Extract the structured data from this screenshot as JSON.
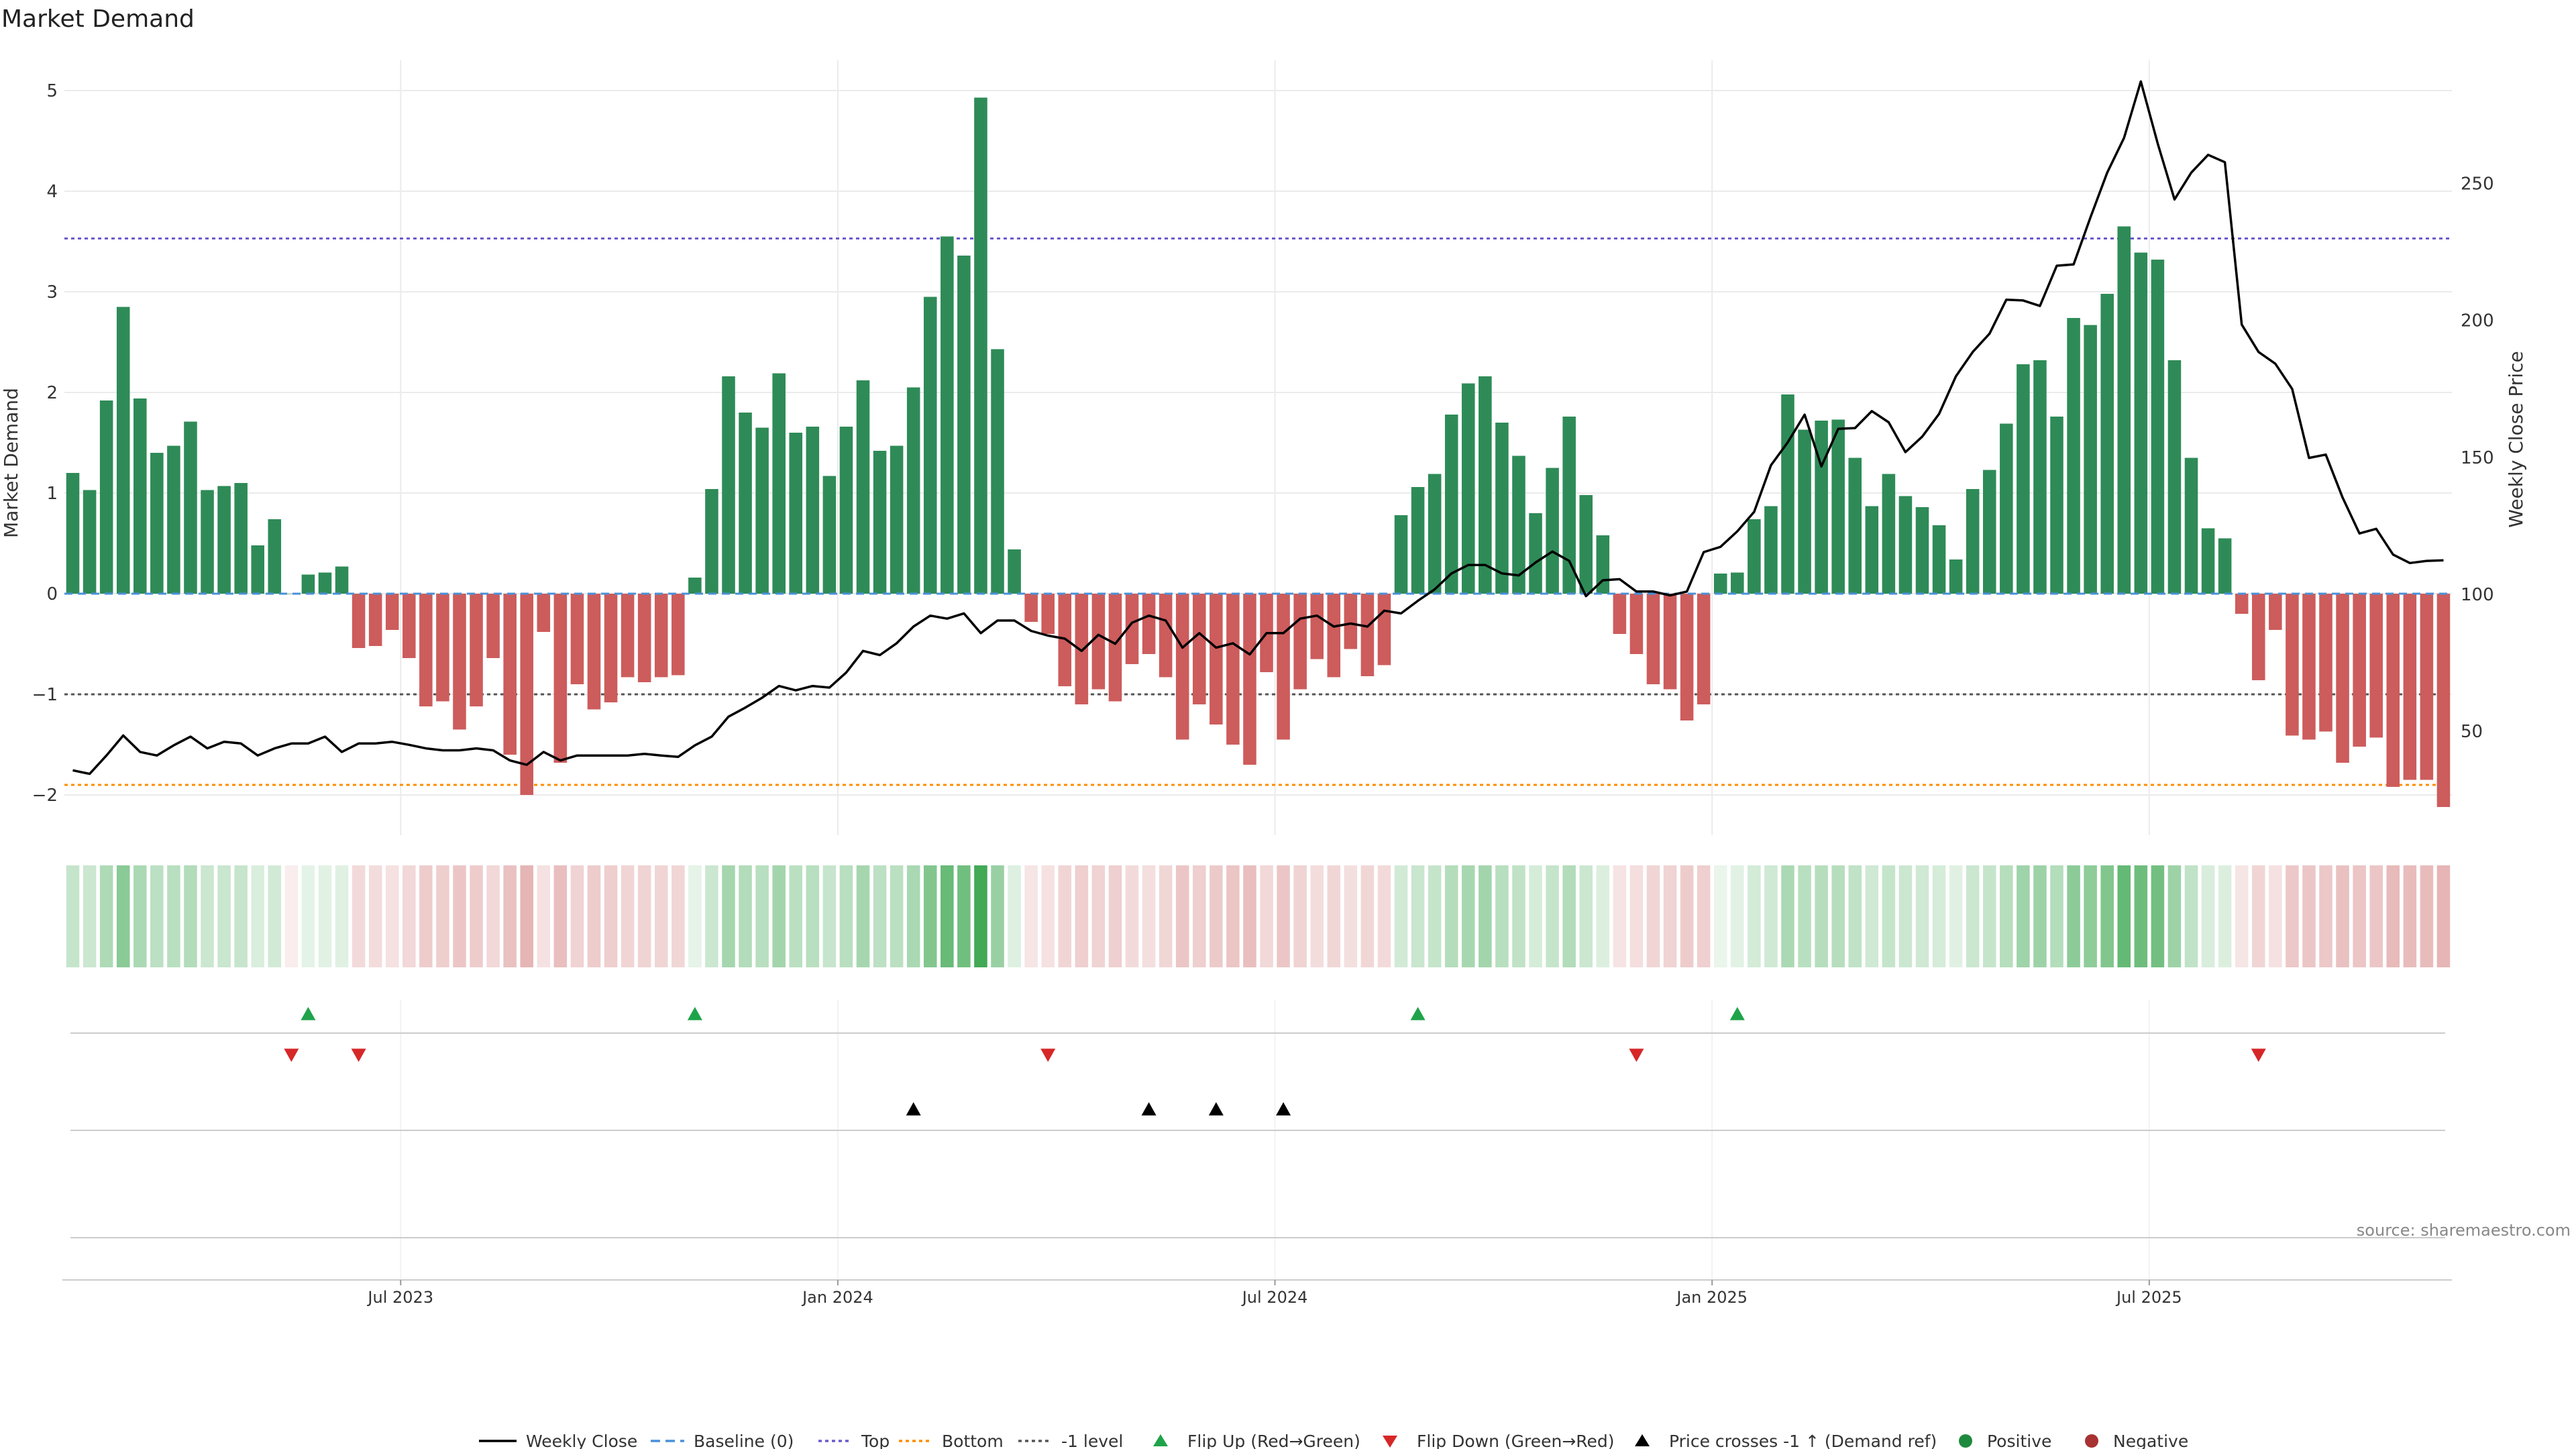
{
  "title": "Market Demand",
  "source": "source: sharemaestro.com",
  "colors": {
    "positive": "#2e8b57",
    "negative": "#cd5c5c",
    "price": "#000000",
    "top": "#6a5acd",
    "bottom": "#ff8c00",
    "minus1": "#555555",
    "flip_up": "#1fa34a",
    "flip_down": "#d62728",
    "grid": "#ebebeb"
  },
  "chart_data": {
    "type": "bar",
    "title": "Market Demand",
    "ylabel": "Market Demand",
    "y2label": "Weekly Close Price",
    "ylim": [
      -2.4,
      5.3
    ],
    "y2lim": [
      12,
      295
    ],
    "yticks": [
      5,
      4,
      3,
      2,
      1,
      0,
      -1,
      -2
    ],
    "y2ticks": [
      250,
      200,
      150,
      100,
      50
    ],
    "ref_lines": {
      "top": 3.53,
      "bottom": -1.9,
      "minus1": -1.0
    },
    "x_ticks": [
      "Jul 2023",
      "Jan 2024",
      "Jul 2024",
      "Jan 2025",
      "Jul 2025"
    ],
    "x_tick_weeks": [
      20,
      46,
      72,
      98,
      124
    ],
    "demand": [
      1.2,
      1.03,
      1.92,
      2.85,
      1.94,
      1.4,
      1.47,
      1.71,
      1.03,
      1.07,
      1.1,
      0.48,
      0.74,
      0.0,
      0.19,
      0.21,
      0.27,
      -0.54,
      -0.52,
      -0.36,
      -0.64,
      -1.12,
      -1.07,
      -1.35,
      -1.12,
      -0.64,
      -1.6,
      -2.0,
      -0.38,
      -1.68,
      -0.9,
      -1.15,
      -1.08,
      -0.83,
      -0.88,
      -0.83,
      -0.81,
      0.16,
      1.04,
      2.16,
      1.8,
      1.65,
      2.19,
      1.6,
      1.66,
      1.17,
      1.66,
      2.12,
      1.42,
      1.47,
      2.05,
      2.95,
      3.55,
      3.36,
      4.93,
      2.43,
      0.44,
      -0.28,
      -0.4,
      -0.92,
      -1.1,
      -0.95,
      -1.07,
      -0.7,
      -0.6,
      -0.83,
      -1.45,
      -1.1,
      -1.3,
      -1.5,
      -1.7,
      -0.78,
      -1.45,
      -0.95,
      -0.65,
      -0.83,
      -0.55,
      -0.82,
      -0.71,
      0.78,
      1.06,
      1.19,
      1.78,
      2.09,
      2.16,
      1.7,
      1.37,
      0.8,
      1.25,
      1.76,
      0.98,
      0.58,
      -0.4,
      -0.6,
      -0.9,
      -0.95,
      -1.26,
      -1.1,
      0.2,
      0.21,
      0.74,
      0.87,
      1.98,
      1.63,
      1.72,
      1.73,
      1.35,
      0.87,
      1.19,
      0.97,
      0.86,
      0.68,
      0.34,
      1.04,
      1.23,
      1.69,
      2.28,
      2.32,
      1.76,
      2.74,
      2.67,
      2.98,
      3.65,
      3.39,
      3.32,
      2.32,
      1.35,
      0.65,
      0.55,
      -0.2,
      -0.86,
      -0.36,
      -1.41,
      -1.45,
      -1.37,
      -1.68,
      -1.52,
      -1.43,
      -1.92,
      -1.85,
      -1.85,
      -2.12
    ],
    "price": [
      35.7,
      34.4,
      41.1,
      48.4,
      42.4,
      41.1,
      44.8,
      48.0,
      43.7,
      46.1,
      45.5,
      41.1,
      43.7,
      45.5,
      45.5,
      48.0,
      42.4,
      45.5,
      45.5,
      46.1,
      45.0,
      43.7,
      43.0,
      43.0,
      43.7,
      43.0,
      39.3,
      37.7,
      42.4,
      39.3,
      41.1,
      41.1,
      41.1,
      41.1,
      41.7,
      41.1,
      40.6,
      44.8,
      48.0,
      55.3,
      58.6,
      62.2,
      66.5,
      64.9,
      66.5,
      65.9,
      71.4,
      79.3,
      77.8,
      82.1,
      88.2,
      92.2,
      91.1,
      93.0,
      85.8,
      90.4,
      90.4,
      86.6,
      84.9,
      83.8,
      79.3,
      85.2,
      81.9,
      89.6,
      92.2,
      90.4,
      80.5,
      85.8,
      80.5,
      82.1,
      78.0,
      85.8,
      85.8,
      91.1,
      92.2,
      88.2,
      89.3,
      88.2,
      94.0,
      93.0,
      97.6,
      101.8,
      107.6,
      110.7,
      110.7,
      107.6,
      106.9,
      111.6,
      115.6,
      112.2,
      99.3,
      105.1,
      105.5,
      101.0,
      101.0,
      99.6,
      101.0,
      115.4,
      117.3,
      123.0,
      130.1,
      147.1,
      155.5,
      165.6,
      146.7,
      160.4,
      160.7,
      166.9,
      162.8,
      151.9,
      157.6,
      165.9,
      179.6,
      188.5,
      195.2,
      207.6,
      207.3,
      205.3,
      220.0,
      220.5,
      237.6,
      254.0,
      266.7,
      287.3,
      264.7,
      244.2,
      254.0,
      260.5,
      257.8,
      198.5,
      188.5,
      184.2,
      175.0,
      149.8,
      151.0,
      135.3,
      122.2,
      123.9,
      114.5,
      111.4,
      112.2,
      112.4
    ],
    "heat": [
      0.28,
      0.25,
      0.39,
      0.56,
      0.4,
      0.32,
      0.34,
      0.37,
      0.25,
      0.26,
      0.27,
      0.18,
      0.22,
      0.1,
      0.13,
      0.14,
      0.15,
      0.21,
      0.2,
      0.17,
      0.22,
      0.29,
      0.28,
      0.32,
      0.29,
      0.22,
      0.35,
      0.42,
      0.17,
      0.37,
      0.25,
      0.29,
      0.28,
      0.24,
      0.25,
      0.24,
      0.23,
      0.12,
      0.25,
      0.43,
      0.37,
      0.34,
      0.44,
      0.33,
      0.34,
      0.27,
      0.34,
      0.43,
      0.32,
      0.33,
      0.41,
      0.6,
      0.72,
      0.68,
      0.9,
      0.49,
      0.16,
      0.15,
      0.17,
      0.24,
      0.27,
      0.25,
      0.27,
      0.21,
      0.19,
      0.23,
      0.32,
      0.27,
      0.3,
      0.33,
      0.37,
      0.22,
      0.32,
      0.25,
      0.2,
      0.23,
      0.18,
      0.23,
      0.21,
      0.22,
      0.26,
      0.28,
      0.36,
      0.42,
      0.44,
      0.34,
      0.3,
      0.2,
      0.28,
      0.37,
      0.25,
      0.17,
      0.16,
      0.19,
      0.24,
      0.25,
      0.29,
      0.27,
      0.1,
      0.14,
      0.21,
      0.23,
      0.4,
      0.34,
      0.35,
      0.35,
      0.3,
      0.23,
      0.28,
      0.25,
      0.23,
      0.2,
      0.15,
      0.25,
      0.28,
      0.35,
      0.46,
      0.47,
      0.36,
      0.55,
      0.54,
      0.6,
      0.74,
      0.69,
      0.67,
      0.47,
      0.3,
      0.19,
      0.17,
      0.15,
      0.24,
      0.17,
      0.31,
      0.32,
      0.31,
      0.35,
      0.33,
      0.32,
      0.39,
      0.38,
      0.38,
      0.42
    ],
    "flip_up_weeks": [
      14,
      37,
      80,
      99
    ],
    "flip_down_weeks": [
      13,
      17,
      58,
      93,
      130
    ],
    "price_cross_weeks": [
      50,
      64,
      68,
      72
    ],
    "legend": [
      "Weekly Close",
      "Baseline (0)",
      "Top",
      "Bottom",
      "-1 level",
      "Flip Up (Red→Green)",
      "Flip Down (Green→Red)",
      "Price crosses -1 ↑ (Demand ref)",
      "Positive",
      "Negative"
    ]
  }
}
